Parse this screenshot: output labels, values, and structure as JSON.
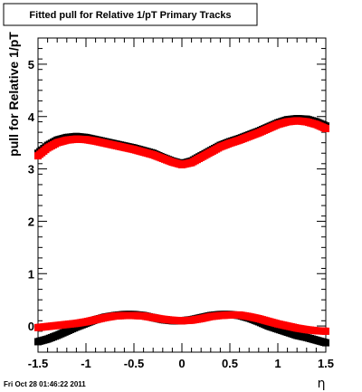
{
  "chart_data": {
    "type": "scatter",
    "title": "Fitted pull for Relative 1/pT  Primary Tracks",
    "xlabel": "η",
    "ylabel": "pull for Relative 1/pT",
    "xlim": [
      -1.5,
      1.5
    ],
    "ylim": [
      -0.5,
      5.5
    ],
    "xticks": [
      -1.5,
      -1,
      -0.5,
      0,
      0.5,
      1,
      1.5
    ],
    "xtick_labels": [
      "-1.5",
      "-1",
      "-0.5",
      "0",
      "0.5",
      "1",
      "1.5"
    ],
    "yticks": [
      0,
      1,
      2,
      3,
      4,
      5
    ],
    "ytick_labels": [
      "0",
      "1",
      "2",
      "3",
      "4",
      "5"
    ],
    "grid": false,
    "legend": false,
    "colors": {
      "upper_black": "#000000",
      "upper_red": "#ff0000",
      "lower_black": "#000000",
      "lower_red": "#ff0000"
    },
    "footer": "Fri Oct 28 01:46:22 2011",
    "series": [
      {
        "color": "#000000",
        "x": [
          -1.5,
          -1.4,
          -1.3,
          -1.2,
          -1.1,
          -1.0,
          -0.9,
          -0.8,
          -0.7,
          -0.6,
          -0.5,
          -0.4,
          -0.3,
          -0.2,
          -0.1,
          0.0,
          0.1,
          0.2,
          0.3,
          0.4,
          0.5,
          0.6,
          0.7,
          0.8,
          0.9,
          1.0,
          1.1,
          1.2,
          1.3,
          1.4,
          1.5
        ],
        "y": [
          3.3,
          3.45,
          3.55,
          3.6,
          3.62,
          3.6,
          3.56,
          3.52,
          3.48,
          3.44,
          3.4,
          3.35,
          3.3,
          3.22,
          3.15,
          3.1,
          3.15,
          3.25,
          3.35,
          3.45,
          3.52,
          3.58,
          3.65,
          3.72,
          3.8,
          3.88,
          3.94,
          3.96,
          3.95,
          3.9,
          3.82
        ]
      },
      {
        "color": "#ff0000",
        "x": [
          -1.5,
          -1.4,
          -1.3,
          -1.2,
          -1.1,
          -1.0,
          -0.9,
          -0.8,
          -0.7,
          -0.6,
          -0.5,
          -0.4,
          -0.3,
          -0.2,
          -0.1,
          0.0,
          0.1,
          0.2,
          0.3,
          0.4,
          0.5,
          0.6,
          0.7,
          0.8,
          0.9,
          1.0,
          1.1,
          1.2,
          1.3,
          1.4,
          1.5
        ],
        "y": [
          3.25,
          3.4,
          3.5,
          3.55,
          3.57,
          3.56,
          3.53,
          3.49,
          3.45,
          3.41,
          3.37,
          3.32,
          3.27,
          3.2,
          3.13,
          3.08,
          3.12,
          3.22,
          3.32,
          3.42,
          3.49,
          3.55,
          3.62,
          3.69,
          3.77,
          3.85,
          3.9,
          3.92,
          3.9,
          3.85,
          3.77
        ]
      },
      {
        "color": "#000000",
        "x": [
          -1.5,
          -1.4,
          -1.3,
          -1.2,
          -1.1,
          -1.0,
          -0.9,
          -0.8,
          -0.7,
          -0.6,
          -0.5,
          -0.4,
          -0.3,
          -0.2,
          -0.1,
          0.0,
          0.1,
          0.2,
          0.3,
          0.4,
          0.5,
          0.6,
          0.7,
          0.8,
          0.9,
          1.0,
          1.1,
          1.2,
          1.3,
          1.4,
          1.5
        ],
        "y": [
          -0.3,
          -0.25,
          -0.18,
          -0.1,
          -0.02,
          0.05,
          0.12,
          0.17,
          0.2,
          0.22,
          0.22,
          0.2,
          0.16,
          0.12,
          0.1,
          0.1,
          0.12,
          0.16,
          0.2,
          0.22,
          0.22,
          0.2,
          0.15,
          0.08,
          0.0,
          -0.06,
          -0.12,
          -0.18,
          -0.22,
          -0.27,
          -0.32
        ]
      },
      {
        "color": "#ff0000",
        "x": [
          -1.5,
          -1.4,
          -1.3,
          -1.2,
          -1.1,
          -1.0,
          -0.9,
          -0.8,
          -0.7,
          -0.6,
          -0.5,
          -0.4,
          -0.3,
          -0.2,
          -0.1,
          0.0,
          0.1,
          0.2,
          0.3,
          0.4,
          0.5,
          0.6,
          0.7,
          0.8,
          0.9,
          1.0,
          1.1,
          1.2,
          1.3,
          1.4,
          1.5
        ],
        "y": [
          -0.03,
          -0.01,
          0.01,
          0.03,
          0.05,
          0.08,
          0.12,
          0.16,
          0.19,
          0.2,
          0.2,
          0.19,
          0.16,
          0.13,
          0.11,
          0.1,
          0.11,
          0.14,
          0.18,
          0.2,
          0.21,
          0.21,
          0.18,
          0.14,
          0.09,
          0.04,
          0.0,
          -0.04,
          -0.07,
          -0.09,
          -0.1
        ]
      }
    ]
  }
}
